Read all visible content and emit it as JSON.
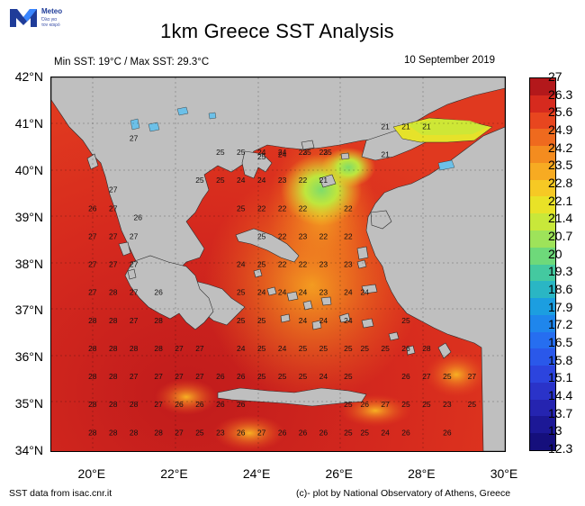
{
  "logo": {
    "brand": "Meteo",
    "tagline_1": "Όλα για",
    "tagline_2": "τον καιρό",
    "colors": {
      "dark": "#1f3c99",
      "light": "#3a86ff"
    }
  },
  "header": {
    "title": "1km Greece SST Analysis",
    "subtitle": "Min SST: 19°C / Max SST: 29.3°C",
    "date": "10 September 2019"
  },
  "map": {
    "land_color": "#bfbfbf",
    "lat_ticks": [
      "42°N",
      "41°N",
      "40°N",
      "39°N",
      "38°N",
      "37°N",
      "36°N",
      "35°N",
      "34°N"
    ],
    "lon_ticks": [
      "20°E",
      "22°E",
      "24°E",
      "26°E",
      "28°E",
      "30°E"
    ],
    "extent": {
      "lon": [
        19,
        30
      ],
      "lat": [
        34,
        42
      ]
    },
    "sst_labels": [
      {
        "lon": 21.0,
        "lat": 40.7,
        "v": "27"
      },
      {
        "lon": 21.1,
        "lat": 39.0,
        "v": "26"
      },
      {
        "lon": 20.5,
        "lat": 39.6,
        "v": "27"
      },
      {
        "lon": 20.0,
        "lat": 39.2,
        "v": "26"
      },
      {
        "lon": 20.5,
        "lat": 39.2,
        "v": "27"
      },
      {
        "lon": 20.0,
        "lat": 38.6,
        "v": "27"
      },
      {
        "lon": 20.5,
        "lat": 38.6,
        "v": "27"
      },
      {
        "lon": 21.0,
        "lat": 38.6,
        "v": "27"
      },
      {
        "lon": 20.0,
        "lat": 38.0,
        "v": "27"
      },
      {
        "lon": 20.5,
        "lat": 38.0,
        "v": "27"
      },
      {
        "lon": 21.0,
        "lat": 38.0,
        "v": "27"
      },
      {
        "lon": 20.0,
        "lat": 37.4,
        "v": "27"
      },
      {
        "lon": 20.5,
        "lat": 37.4,
        "v": "28"
      },
      {
        "lon": 21.0,
        "lat": 37.4,
        "v": "27"
      },
      {
        "lon": 21.6,
        "lat": 37.4,
        "v": "26"
      },
      {
        "lon": 20.0,
        "lat": 36.8,
        "v": "28"
      },
      {
        "lon": 20.5,
        "lat": 36.8,
        "v": "28"
      },
      {
        "lon": 21.0,
        "lat": 36.8,
        "v": "27"
      },
      {
        "lon": 21.6,
        "lat": 36.8,
        "v": "28"
      },
      {
        "lon": 20.0,
        "lat": 36.2,
        "v": "28"
      },
      {
        "lon": 20.5,
        "lat": 36.2,
        "v": "28"
      },
      {
        "lon": 21.0,
        "lat": 36.2,
        "v": "28"
      },
      {
        "lon": 21.6,
        "lat": 36.2,
        "v": "28"
      },
      {
        "lon": 22.1,
        "lat": 36.2,
        "v": "27"
      },
      {
        "lon": 22.6,
        "lat": 36.2,
        "v": "27"
      },
      {
        "lon": 20.0,
        "lat": 35.6,
        "v": "28"
      },
      {
        "lon": 20.5,
        "lat": 35.6,
        "v": "28"
      },
      {
        "lon": 21.0,
        "lat": 35.6,
        "v": "27"
      },
      {
        "lon": 21.6,
        "lat": 35.6,
        "v": "27"
      },
      {
        "lon": 22.1,
        "lat": 35.6,
        "v": "27"
      },
      {
        "lon": 22.6,
        "lat": 35.6,
        "v": "27"
      },
      {
        "lon": 23.1,
        "lat": 35.6,
        "v": "26"
      },
      {
        "lon": 23.6,
        "lat": 35.6,
        "v": "26"
      },
      {
        "lon": 24.1,
        "lat": 35.6,
        "v": "25"
      },
      {
        "lon": 24.6,
        "lat": 35.6,
        "v": "25"
      },
      {
        "lon": 25.1,
        "lat": 35.6,
        "v": "25"
      },
      {
        "lon": 25.6,
        "lat": 35.6,
        "v": "24"
      },
      {
        "lon": 26.2,
        "lat": 35.6,
        "v": "25"
      },
      {
        "lon": 27.6,
        "lat": 35.6,
        "v": "26"
      },
      {
        "lon": 28.1,
        "lat": 35.6,
        "v": "27"
      },
      {
        "lon": 28.6,
        "lat": 35.6,
        "v": "25"
      },
      {
        "lon": 29.2,
        "lat": 35.6,
        "v": "27"
      },
      {
        "lon": 20.0,
        "lat": 35.0,
        "v": "28"
      },
      {
        "lon": 20.5,
        "lat": 35.0,
        "v": "28"
      },
      {
        "lon": 21.0,
        "lat": 35.0,
        "v": "28"
      },
      {
        "lon": 21.6,
        "lat": 35.0,
        "v": "27"
      },
      {
        "lon": 22.1,
        "lat": 35.0,
        "v": "26"
      },
      {
        "lon": 22.6,
        "lat": 35.0,
        "v": "26"
      },
      {
        "lon": 23.1,
        "lat": 35.0,
        "v": "26"
      },
      {
        "lon": 23.6,
        "lat": 35.0,
        "v": "26"
      },
      {
        "lon": 26.2,
        "lat": 35.0,
        "v": "25"
      },
      {
        "lon": 26.6,
        "lat": 35.0,
        "v": "26"
      },
      {
        "lon": 27.1,
        "lat": 35.0,
        "v": "27"
      },
      {
        "lon": 27.6,
        "lat": 35.0,
        "v": "25"
      },
      {
        "lon": 28.1,
        "lat": 35.0,
        "v": "25"
      },
      {
        "lon": 28.6,
        "lat": 35.0,
        "v": "23"
      },
      {
        "lon": 29.2,
        "lat": 35.0,
        "v": "25"
      },
      {
        "lon": 20.0,
        "lat": 34.4,
        "v": "28"
      },
      {
        "lon": 20.5,
        "lat": 34.4,
        "v": "28"
      },
      {
        "lon": 21.0,
        "lat": 34.4,
        "v": "28"
      },
      {
        "lon": 21.6,
        "lat": 34.4,
        "v": "28"
      },
      {
        "lon": 22.1,
        "lat": 34.4,
        "v": "27"
      },
      {
        "lon": 22.6,
        "lat": 34.4,
        "v": "25"
      },
      {
        "lon": 23.1,
        "lat": 34.4,
        "v": "23"
      },
      {
        "lon": 23.6,
        "lat": 34.4,
        "v": "26"
      },
      {
        "lon": 24.1,
        "lat": 34.4,
        "v": "27"
      },
      {
        "lon": 24.6,
        "lat": 34.4,
        "v": "26"
      },
      {
        "lon": 25.1,
        "lat": 34.4,
        "v": "26"
      },
      {
        "lon": 25.6,
        "lat": 34.4,
        "v": "26"
      },
      {
        "lon": 26.2,
        "lat": 34.4,
        "v": "25"
      },
      {
        "lon": 26.6,
        "lat": 34.4,
        "v": "25"
      },
      {
        "lon": 27.1,
        "lat": 34.4,
        "v": "24"
      },
      {
        "lon": 27.6,
        "lat": 34.4,
        "v": "26"
      },
      {
        "lon": 28.6,
        "lat": 34.4,
        "v": "26"
      },
      {
        "lon": 23.6,
        "lat": 36.2,
        "v": "24"
      },
      {
        "lon": 24.1,
        "lat": 36.2,
        "v": "25"
      },
      {
        "lon": 24.6,
        "lat": 36.2,
        "v": "24"
      },
      {
        "lon": 25.1,
        "lat": 36.2,
        "v": "25"
      },
      {
        "lon": 25.6,
        "lat": 36.2,
        "v": "25"
      },
      {
        "lon": 26.2,
        "lat": 36.2,
        "v": "25"
      },
      {
        "lon": 26.6,
        "lat": 36.2,
        "v": "25"
      },
      {
        "lon": 27.1,
        "lat": 36.2,
        "v": "25"
      },
      {
        "lon": 27.6,
        "lat": 36.2,
        "v": "26"
      },
      {
        "lon": 28.1,
        "lat": 36.2,
        "v": "28"
      },
      {
        "lon": 23.6,
        "lat": 36.8,
        "v": "25"
      },
      {
        "lon": 24.1,
        "lat": 36.8,
        "v": "25"
      },
      {
        "lon": 25.1,
        "lat": 36.8,
        "v": "24"
      },
      {
        "lon": 25.6,
        "lat": 36.8,
        "v": "24"
      },
      {
        "lon": 26.2,
        "lat": 36.8,
        "v": "24"
      },
      {
        "lon": 27.6,
        "lat": 36.8,
        "v": "25"
      },
      {
        "lon": 23.6,
        "lat": 37.4,
        "v": "25"
      },
      {
        "lon": 24.1,
        "lat": 37.4,
        "v": "24"
      },
      {
        "lon": 24.6,
        "lat": 37.4,
        "v": "24"
      },
      {
        "lon": 25.1,
        "lat": 37.4,
        "v": "24"
      },
      {
        "lon": 25.6,
        "lat": 37.4,
        "v": "23"
      },
      {
        "lon": 26.2,
        "lat": 37.4,
        "v": "24"
      },
      {
        "lon": 26.6,
        "lat": 37.4,
        "v": "24"
      },
      {
        "lon": 23.6,
        "lat": 38.0,
        "v": "24"
      },
      {
        "lon": 24.1,
        "lat": 38.0,
        "v": "25"
      },
      {
        "lon": 24.6,
        "lat": 38.0,
        "v": "22"
      },
      {
        "lon": 25.1,
        "lat": 38.0,
        "v": "22"
      },
      {
        "lon": 25.6,
        "lat": 38.0,
        "v": "23"
      },
      {
        "lon": 26.2,
        "lat": 38.0,
        "v": "23"
      },
      {
        "lon": 24.1,
        "lat": 38.6,
        "v": "25"
      },
      {
        "lon": 24.6,
        "lat": 38.6,
        "v": "22"
      },
      {
        "lon": 25.1,
        "lat": 38.6,
        "v": "23"
      },
      {
        "lon": 25.6,
        "lat": 38.6,
        "v": "22"
      },
      {
        "lon": 26.2,
        "lat": 38.6,
        "v": "22"
      },
      {
        "lon": 23.6,
        "lat": 39.2,
        "v": "25"
      },
      {
        "lon": 24.1,
        "lat": 39.2,
        "v": "22"
      },
      {
        "lon": 24.6,
        "lat": 39.2,
        "v": "22"
      },
      {
        "lon": 25.1,
        "lat": 39.2,
        "v": "22"
      },
      {
        "lon": 26.2,
        "lat": 39.2,
        "v": "22"
      },
      {
        "lon": 22.6,
        "lat": 39.8,
        "v": "25"
      },
      {
        "lon": 23.1,
        "lat": 39.8,
        "v": "25"
      },
      {
        "lon": 23.6,
        "lat": 39.8,
        "v": "24"
      },
      {
        "lon": 24.1,
        "lat": 39.8,
        "v": "24"
      },
      {
        "lon": 24.6,
        "lat": 39.8,
        "v": "23"
      },
      {
        "lon": 25.1,
        "lat": 39.8,
        "v": "22"
      },
      {
        "lon": 25.6,
        "lat": 39.8,
        "v": "21"
      },
      {
        "lon": 23.1,
        "lat": 40.4,
        "v": "25"
      },
      {
        "lon": 23.6,
        "lat": 40.4,
        "v": "25"
      },
      {
        "lon": 24.1,
        "lat": 40.4,
        "v": "24"
      },
      {
        "lon": 24.6,
        "lat": 40.4,
        "v": "24"
      },
      {
        "lon": 25.1,
        "lat": 40.4,
        "v": "23"
      },
      {
        "lon": 25.6,
        "lat": 40.4,
        "v": "23"
      },
      {
        "lon": 24.1,
        "lat": 40.3,
        "v": "25"
      },
      {
        "lon": 24.6,
        "lat": 40.35,
        "v": "24"
      },
      {
        "lon": 25.2,
        "lat": 40.4,
        "v": "25"
      },
      {
        "lon": 25.7,
        "lat": 40.4,
        "v": "25"
      },
      {
        "lon": 27.1,
        "lat": 40.95,
        "v": "21"
      },
      {
        "lon": 27.6,
        "lat": 40.95,
        "v": "21"
      },
      {
        "lon": 28.1,
        "lat": 40.95,
        "v": "21"
      },
      {
        "lon": 27.1,
        "lat": 40.35,
        "v": "21"
      }
    ]
  },
  "colorbar": {
    "labels": [
      "27",
      "26.3",
      "25.6",
      "24.9",
      "24.2",
      "23.5",
      "22.8",
      "22.1",
      "21.4",
      "20.7",
      "20",
      "19.3",
      "18.6",
      "17.9",
      "17.2",
      "16.5",
      "15.8",
      "15.1",
      "14.4",
      "13.7",
      "13",
      "12.3"
    ],
    "colors": [
      "#b3181b",
      "#d62a1e",
      "#e8461f",
      "#ef6a1e",
      "#f48c1f",
      "#f7ab22",
      "#f6c924",
      "#e9e227",
      "#c8e83a",
      "#9ee35a",
      "#6ed97a",
      "#44c9a0",
      "#2ab6c4",
      "#1c9ee0",
      "#1f86ec",
      "#266ef0",
      "#2a58ea",
      "#2c44de",
      "#2a33c9",
      "#2524b0",
      "#1c1896",
      "#150f7c"
    ]
  },
  "footer": {
    "source": "SST data from isac.cnr.it",
    "credit": "(c)- plot by National Observatory of Athens, Greece"
  }
}
